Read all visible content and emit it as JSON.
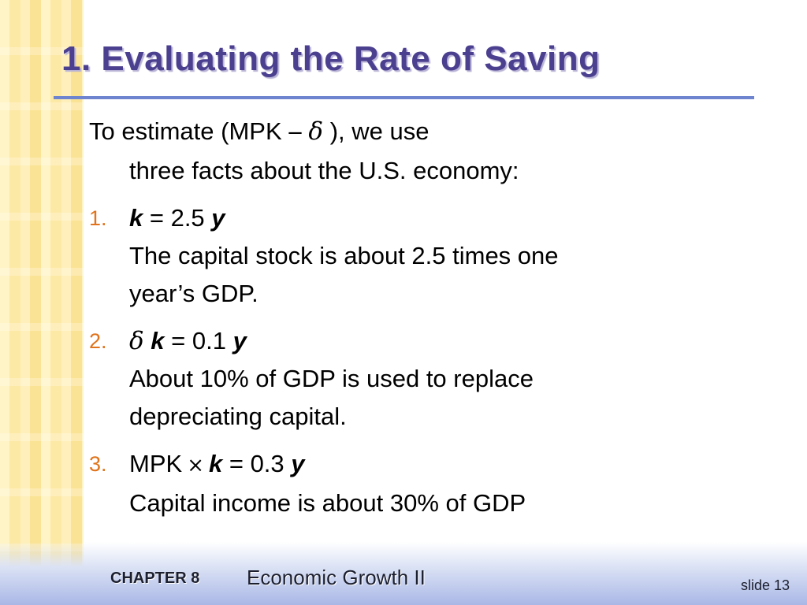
{
  "slide": {
    "title": "1.  Evaluating the Rate of Saving",
    "intro": {
      "line1_prefix": "To estimate (MPK",
      "minus": "−",
      "delta": "δ",
      "line1_suffix": " ), we use",
      "line2": "three facts about the U.S. economy:"
    },
    "facts": [
      {
        "number": "1.",
        "formula": {
          "lhs_var": "k",
          "eq": " = 2.5 ",
          "rhs_var": "y"
        },
        "text_line1": "The capital stock is about 2.5 times one",
        "text_line2": "year’s GDP."
      },
      {
        "number": "2.",
        "formula": {
          "delta": "δ",
          "lhs_var": "k",
          "eq": " = 0.1 ",
          "rhs_var": "y"
        },
        "text_line1": "About 10% of GDP is used to replace",
        "text_line2": "depreciating capital."
      },
      {
        "number": "3.",
        "formula": {
          "mpk": "MPK",
          "times": "×",
          "lhs_var": "k",
          "eq": "  = 0.3 ",
          "rhs_var": "y"
        },
        "text_line1": "Capital income is about 30% of GDP"
      }
    ]
  },
  "footer": {
    "chapter": "CHAPTER 8",
    "subject": "Economic Growth II",
    "slide_number": "slide 13"
  },
  "colors": {
    "title": "#4b3f8f",
    "rule": "#6f84cf",
    "list_number": "#e0731b"
  }
}
